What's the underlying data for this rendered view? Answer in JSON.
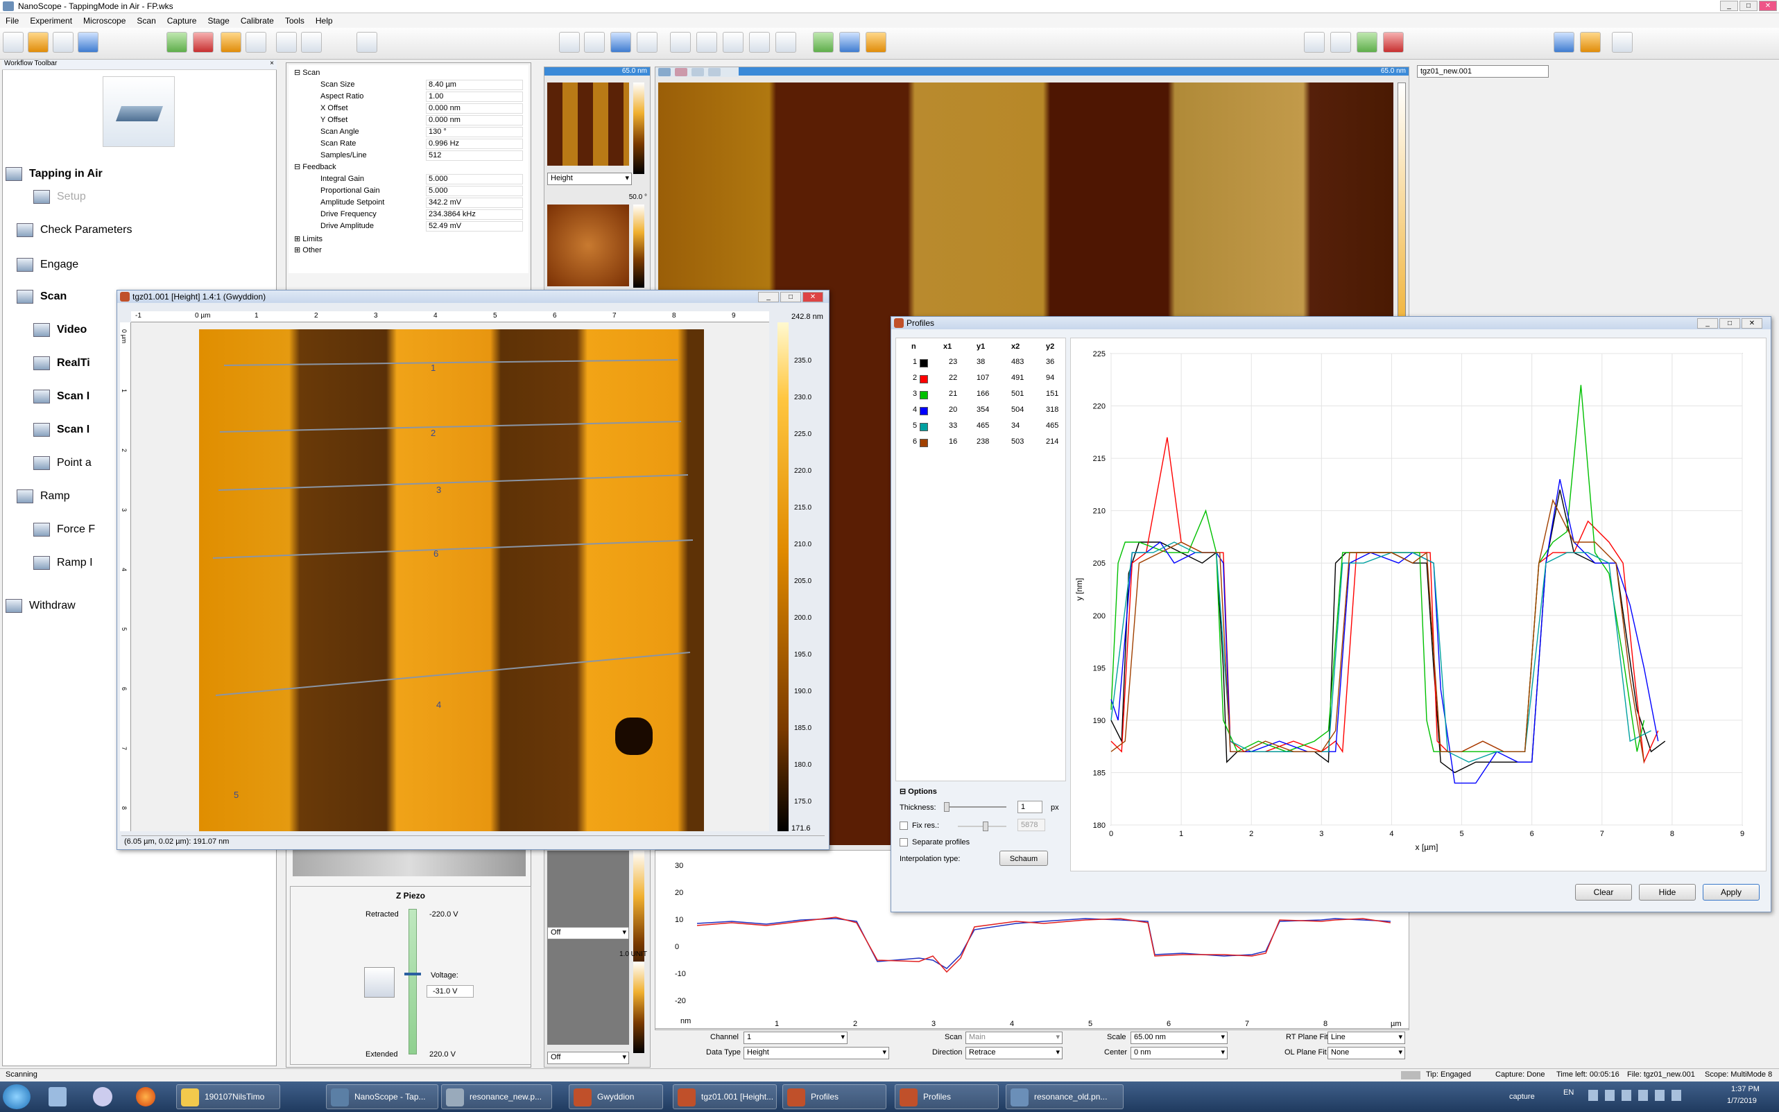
{
  "window": {
    "title": "NanoScope - TappingMode in Air - FP.wks"
  },
  "menu": [
    "File",
    "Experiment",
    "Microscope",
    "Scan",
    "Capture",
    "Stage",
    "Calibrate",
    "Tools",
    "Help"
  ],
  "toolbar": {
    "filename": "tgz01_new.001"
  },
  "workflow": {
    "title": "Workflow Toolbar",
    "mode": "Tapping in Air",
    "items": [
      {
        "label": "Setup",
        "indent": 1,
        "disabled": true,
        "bold": false
      },
      {
        "label": "Check Parameters",
        "indent": 0,
        "disabled": false,
        "bold": false
      },
      {
        "label": "Engage",
        "indent": 0,
        "disabled": false,
        "bold": false
      },
      {
        "label": "Scan",
        "indent": 0,
        "disabled": false,
        "bold": true
      },
      {
        "label": "Video",
        "indent": 1,
        "disabled": false,
        "bold": true
      },
      {
        "label": "RealTi",
        "indent": 1,
        "disabled": false,
        "bold": true
      },
      {
        "label": "Scan I",
        "indent": 1,
        "disabled": false,
        "bold": true
      },
      {
        "label": "Scan I",
        "indent": 1,
        "disabled": false,
        "bold": true
      },
      {
        "label": "Point a",
        "indent": 1,
        "disabled": false,
        "bold": false
      },
      {
        "label": "Ramp",
        "indent": 0,
        "disabled": false,
        "bold": false
      },
      {
        "label": "Force F",
        "indent": 1,
        "disabled": false,
        "bold": false
      },
      {
        "label": "Ramp I",
        "indent": 1,
        "disabled": false,
        "bold": false
      }
    ],
    "withdraw": "Withdraw"
  },
  "params": {
    "scan": {
      "label": "Scan",
      "rows": [
        [
          "Scan Size",
          "8.40 µm"
        ],
        [
          "Aspect Ratio",
          "1.00"
        ],
        [
          "X Offset",
          "0.000 nm"
        ],
        [
          "Y Offset",
          "0.000 nm"
        ],
        [
          "Scan Angle",
          "130 °"
        ],
        [
          "Scan Rate",
          "0.996 Hz"
        ],
        [
          "Samples/Line",
          "512"
        ]
      ]
    },
    "feedback": {
      "label": "Feedback",
      "rows": [
        [
          "Integral Gain",
          "5.000"
        ],
        [
          "Proportional Gain",
          "5.000"
        ],
        [
          "Amplitude Setpoint",
          "342.2 mV"
        ],
        [
          "Drive Frequency",
          "234.3864 kHz"
        ],
        [
          "Drive Amplitude",
          "52.49 mV"
        ]
      ]
    },
    "limits": "Limits",
    "other": "Other"
  },
  "channels": {
    "ch1_range": "65.0 nm",
    "ch1_type": "Height",
    "ch2_range": "50.0 °",
    "ch3_mode": "Off",
    "ch4_range": "1.0 UNIT",
    "ch4_mode": "Off"
  },
  "main_image": {
    "range": "65.0 nm"
  },
  "zpiezo": {
    "title": "Z Piezo",
    "retracted": "Retracted",
    "retracted_v": "-220.0 V",
    "voltage_label": "Voltage:",
    "voltage": "-31.0 V",
    "extended": "Extended",
    "extended_v": "220.0 V"
  },
  "scope_plot": {
    "yticks": [
      "30",
      "20",
      "10",
      "0",
      "-10",
      "-20"
    ],
    "xticks": [
      "1",
      "2",
      "3",
      "4",
      "5",
      "6",
      "7",
      "8"
    ],
    "yunit": "nm",
    "xunit": "µm"
  },
  "bottom_controls": {
    "channel_label": "Channel",
    "channel": "1",
    "data_type_label": "Data Type",
    "data_type": "Height",
    "scan_label": "Scan",
    "scan": "Main",
    "direction_label": "Direction",
    "direction": "Retrace",
    "scale_label": "Scale",
    "scale": "65.00 nm",
    "center_label": "Center",
    "center": "0 nm",
    "rt_plane_label": "RT Plane Fit",
    "rt_plane": "Line",
    "ol_plane_label": "OL Plane Fit",
    "ol_plane": "None"
  },
  "gwyddion": {
    "title": "tgz01.001 [Height] 1.4:1 (Gwyddion)",
    "ruler": [
      "-1",
      "0 µm",
      "1",
      "2",
      "3",
      "4",
      "5",
      "6",
      "7",
      "8",
      "9"
    ],
    "vruler": [
      "0 µm",
      "1",
      "2",
      "3",
      "4",
      "5",
      "6",
      "7",
      "8"
    ],
    "colorbar_max": "242.8 nm",
    "colorbar_ticks": [
      "235.0",
      "230.0",
      "225.0",
      "220.0",
      "215.0",
      "210.0",
      "205.0",
      "200.0",
      "195.0",
      "190.0",
      "185.0",
      "180.0",
      "175.0"
    ],
    "colorbar_min": "171.6",
    "status": "(6.05 µm, 0.02 µm): 191.07 nm",
    "line_labels": [
      "1",
      "2",
      "3",
      "6",
      "4",
      "5"
    ]
  },
  "profiles": {
    "title": "Profiles",
    "columns": [
      "n",
      "x1",
      "y1",
      "x2",
      "y2"
    ],
    "rows": [
      {
        "n": "1",
        "color": "#000000",
        "x1": "23",
        "y1": "38",
        "x2": "483",
        "y2": "36"
      },
      {
        "n": "2",
        "color": "#ff0000",
        "x1": "22",
        "y1": "107",
        "x2": "491",
        "y2": "94"
      },
      {
        "n": "3",
        "color": "#00c000",
        "x1": "21",
        "y1": "166",
        "x2": "501",
        "y2": "151"
      },
      {
        "n": "4",
        "color": "#0000ff",
        "x1": "20",
        "y1": "354",
        "x2": "504",
        "y2": "318"
      },
      {
        "n": "5",
        "color": "#00a0a0",
        "x1": "33",
        "y1": "465",
        "x2": "34",
        "y2": "465"
      },
      {
        "n": "6",
        "color": "#a04000",
        "x1": "16",
        "y1": "238",
        "x2": "503",
        "y2": "214"
      }
    ],
    "options_title": "Options",
    "thickness_label": "Thickness:",
    "thickness": "1",
    "thickness_unit": "px",
    "fixres_label": "Fix res.:",
    "fixres": "5878",
    "separate_label": "Separate profiles",
    "interp_label": "Interpolation type:",
    "interp": "Schaum",
    "clear": "Clear",
    "hide": "Hide",
    "apply": "Apply"
  },
  "chart_data": {
    "type": "line",
    "xlabel": "x [µm]",
    "ylabel": "y [nm]",
    "xlim": [
      0,
      9
    ],
    "ylim": [
      180,
      225
    ],
    "xticks": [
      "0",
      "1",
      "2",
      "3",
      "4",
      "5",
      "6",
      "7",
      "8",
      "9"
    ],
    "yticks": [
      "180",
      "185",
      "190",
      "195",
      "200",
      "205",
      "210",
      "215",
      "220",
      "225"
    ],
    "series": [
      {
        "color": "#000000",
        "x": [
          0,
          0.15,
          0.25,
          0.4,
          0.7,
          1.0,
          1.3,
          1.5,
          1.6,
          1.65,
          1.8,
          2.1,
          2.5,
          2.9,
          3.1,
          3.2,
          3.35,
          3.6,
          4.0,
          4.3,
          4.5,
          4.6,
          4.7,
          4.9,
          5.2,
          5.5,
          5.8,
          6.0,
          6.2,
          6.4,
          6.6,
          6.9,
          7.2,
          7.5,
          7.7,
          7.9
        ],
        "y": [
          190,
          188,
          204,
          207,
          207,
          206,
          205,
          206,
          195,
          186,
          187,
          187,
          187,
          187,
          186,
          205,
          206,
          206,
          206,
          205,
          205,
          195,
          186,
          185,
          186,
          186,
          186,
          186,
          205,
          212,
          206,
          205,
          205,
          191,
          187,
          188
        ]
      },
      {
        "color": "#ff0000",
        "x": [
          0,
          0.15,
          0.3,
          0.5,
          0.8,
          1.0,
          1.3,
          1.5,
          1.6,
          1.7,
          1.9,
          2.2,
          2.6,
          3.0,
          3.2,
          3.3,
          3.5,
          3.8,
          4.1,
          4.4,
          4.55,
          4.65,
          4.8,
          5.0,
          5.3,
          5.6,
          5.9,
          6.1,
          6.3,
          6.6,
          6.8,
          7.1,
          7.3,
          7.45,
          7.6,
          7.8
        ],
        "y": [
          188,
          187,
          205,
          206,
          217,
          207,
          206,
          206,
          206,
          188,
          187,
          187,
          188,
          187,
          188,
          187,
          206,
          206,
          206,
          206,
          206,
          188,
          187,
          187,
          188,
          187,
          187,
          205,
          206,
          206,
          209,
          207,
          205,
          195,
          186,
          189
        ]
      },
      {
        "color": "#00c000",
        "x": [
          0,
          0.1,
          0.2,
          0.4,
          0.8,
          1.1,
          1.35,
          1.5,
          1.6,
          1.8,
          2.1,
          2.5,
          2.9,
          3.1,
          3.3,
          3.5,
          3.9,
          4.2,
          4.4,
          4.5,
          4.6,
          4.8,
          5.2,
          5.5,
          5.9,
          6.1,
          6.3,
          6.5,
          6.7,
          6.9,
          7.1,
          7.3,
          7.5,
          7.6
        ],
        "y": [
          191,
          205,
          207,
          207,
          206,
          206,
          210,
          206,
          190,
          187,
          188,
          187,
          188,
          189,
          206,
          206,
          206,
          206,
          206,
          190,
          187,
          187,
          187,
          187,
          187,
          205,
          207,
          208,
          222,
          206,
          204,
          196,
          187,
          190
        ]
      },
      {
        "color": "#0000ff",
        "x": [
          0,
          0.1,
          0.3,
          0.5,
          0.7,
          0.9,
          1.2,
          1.5,
          1.6,
          1.7,
          2.0,
          2.4,
          2.8,
          3.0,
          3.2,
          3.4,
          3.7,
          4.1,
          4.3,
          4.6,
          4.7,
          4.9,
          5.2,
          5.5,
          5.8,
          6.0,
          6.2,
          6.4,
          6.6,
          6.9,
          7.2,
          7.4,
          7.6,
          7.8
        ],
        "y": [
          192,
          190,
          206,
          206,
          207,
          205,
          206,
          206,
          205,
          187,
          187,
          188,
          187,
          187,
          187,
          205,
          206,
          205,
          206,
          205,
          193,
          184,
          184,
          187,
          186,
          186,
          205,
          213,
          207,
          205,
          205,
          201,
          195,
          188
        ]
      },
      {
        "color": "#00a0a0",
        "x": [
          0,
          0.3,
          0.6,
          0.9,
          1.2,
          1.5,
          1.7,
          2.0,
          2.4,
          2.8,
          3.1,
          3.3,
          3.6,
          4.0,
          4.3,
          4.6,
          4.8,
          5.1,
          5.5,
          5.9,
          6.2,
          6.5,
          6.8,
          7.1,
          7.4,
          7.7
        ],
        "y": [
          190,
          206,
          206,
          207,
          206,
          206,
          188,
          187,
          187,
          187,
          187,
          205,
          205,
          206,
          206,
          205,
          187,
          186,
          187,
          187,
          205,
          206,
          206,
          205,
          188,
          189
        ]
      },
      {
        "color": "#a04000",
        "x": [
          0,
          0.2,
          0.4,
          0.7,
          1.0,
          1.3,
          1.55,
          1.7,
          1.9,
          2.2,
          2.6,
          3.0,
          3.2,
          3.4,
          3.7,
          4.0,
          4.3,
          4.5,
          4.7,
          5.0,
          5.3,
          5.6,
          5.9,
          6.1,
          6.3,
          6.6,
          6.9,
          7.2,
          7.4,
          7.6
        ],
        "y": [
          187,
          188,
          205,
          206,
          207,
          206,
          206,
          187,
          187,
          188,
          187,
          187,
          189,
          206,
          206,
          206,
          205,
          206,
          187,
          187,
          188,
          187,
          187,
          205,
          211,
          207,
          207,
          205,
          194,
          186
        ]
      }
    ]
  },
  "statusbar": {
    "left": "Scanning",
    "tip": "Tip: Engaged",
    "capture": "Capture: Done",
    "time": "Time left: 00:05:16",
    "file": "File: tgz01_new.001",
    "scope": "Scope: MultiMode 8"
  },
  "taskbar": {
    "items": [
      "190107NilsTimo",
      "NanoScope - Tap...",
      "resonance_new.p...",
      "Gwyddion",
      "tgz01.001 [Height...",
      "Profiles",
      "Profiles",
      "resonance_old.pn..."
    ],
    "tray_label": "capture",
    "lang": "EN",
    "time": "1:37 PM",
    "date": "1/7/2019"
  }
}
